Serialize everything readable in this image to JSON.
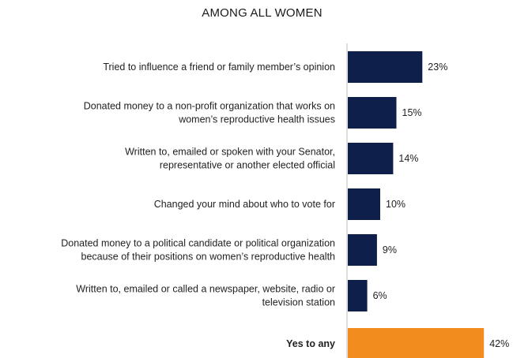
{
  "chart_data": {
    "type": "bar",
    "orientation": "horizontal",
    "title": "AMONG ALL WOMEN",
    "xlabel": "",
    "ylabel": "",
    "value_suffix": "%",
    "grid": false,
    "legend": "none",
    "categories": [
      [
        "Tried to influence a friend or family member’s opinion"
      ],
      [
        "Donated money to a non-profit organization that works on",
        "women’s reproductive health issues"
      ],
      [
        "Written to, emailed or spoken with your Senator,",
        "representative or another elected official"
      ],
      [
        "Changed your mind about who to vote for"
      ],
      [
        "Donated money to a political candidate or political organization",
        "because of their positions on women’s reproductive health"
      ],
      [
        "Written to, emailed or called a newspaper, website, radio or",
        "television station"
      ],
      [
        "Yes to any"
      ]
    ],
    "values": [
      23,
      15,
      14,
      10,
      9,
      6,
      42
    ],
    "highlight_index": 6,
    "colors": {
      "bar": "#0f1f4b",
      "highlight": "#f28c1e",
      "axis": "#bfbfbf"
    }
  }
}
